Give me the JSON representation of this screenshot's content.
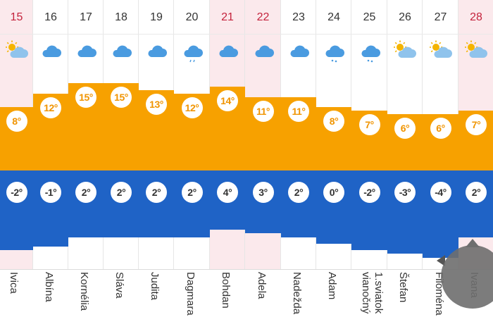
{
  "days": [
    {
      "date": "15",
      "weekend": true,
      "icon": "sun-cloud-icon",
      "max": "8°",
      "min": "-2°",
      "name": "Ivica"
    },
    {
      "date": "16",
      "weekend": false,
      "icon": "cloud-icon",
      "max": "12°",
      "min": "-1°",
      "name": "Albína"
    },
    {
      "date": "17",
      "weekend": false,
      "icon": "cloud-icon",
      "max": "15°",
      "min": "2°",
      "name": "Kornélia"
    },
    {
      "date": "18",
      "weekend": false,
      "icon": "cloud-icon",
      "max": "15°",
      "min": "2°",
      "name": "Sláva"
    },
    {
      "date": "19",
      "weekend": false,
      "icon": "cloud-icon",
      "max": "13°",
      "min": "2°",
      "name": "Judita"
    },
    {
      "date": "20",
      "weekend": false,
      "icon": "rain-cloud-icon",
      "max": "12°",
      "min": "2°",
      "name": "Dagmara"
    },
    {
      "date": "21",
      "weekend": true,
      "icon": "cloud-icon",
      "max": "14°",
      "min": "4°",
      "name": "Bohdan"
    },
    {
      "date": "22",
      "weekend": true,
      "icon": "cloud-icon",
      "max": "11°",
      "min": "3°",
      "name": "Adela"
    },
    {
      "date": "23",
      "weekend": false,
      "icon": "cloud-icon",
      "max": "11°",
      "min": "2°",
      "name": "Nadežda"
    },
    {
      "date": "24",
      "weekend": false,
      "icon": "snow-cloud-icon",
      "max": "8°",
      "min": "0°",
      "name": "Adam"
    },
    {
      "date": "25",
      "weekend": false,
      "icon": "snow-cloud-icon",
      "max": "7°",
      "min": "-2°",
      "name": "1.sviatok",
      "name2": "vianočný"
    },
    {
      "date": "26",
      "weekend": false,
      "icon": "sun-cloud-icon",
      "max": "6°",
      "min": "-3°",
      "name": "Štefan"
    },
    {
      "date": "27",
      "weekend": false,
      "icon": "sun-cloud-icon",
      "max": "6°",
      "min": "-4°",
      "name": "Filoména"
    },
    {
      "date": "28",
      "weekend": true,
      "icon": "sun-cloud-icon",
      "max": "7°",
      "min": "2°",
      "name": "Ivana"
    }
  ],
  "colors": {
    "max_bar": "#f7a100",
    "min_bar": "#1f63c6",
    "weekend_date": "#c4223c"
  }
}
